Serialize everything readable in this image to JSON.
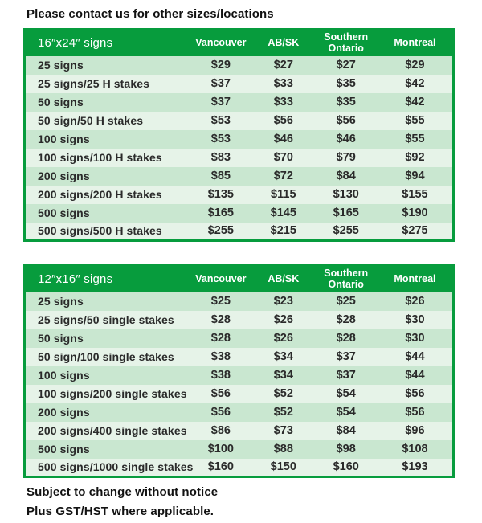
{
  "page": {
    "title": "Please contact us for other sizes/locations",
    "notes": [
      "Subject to change without notice",
      "Plus GST/HST where applicable."
    ]
  },
  "colors": {
    "brand_green": "#079C3D",
    "row_shaded": "#C9E7D0",
    "row_light": "#E6F3E8",
    "header_text": "#FFFFFF",
    "body_text": "#2A2A2A"
  },
  "columns": [
    "Vancouver",
    "AB/SK",
    "Southern Ontario",
    "Montreal"
  ],
  "tables": [
    {
      "size_label": "16″x24″ signs",
      "rows": [
        {
          "item": "25 signs",
          "prices": [
            "$29",
            "$27",
            "$27",
            "$29"
          ]
        },
        {
          "item": "25 signs/25 H stakes",
          "prices": [
            "$37",
            "$33",
            "$35",
            "$42"
          ]
        },
        {
          "item": "50 signs",
          "prices": [
            "$37",
            "$33",
            "$35",
            "$42"
          ]
        },
        {
          "item": "50 sign/50 H stakes",
          "prices": [
            "$53",
            "$56",
            "$56",
            "$55"
          ]
        },
        {
          "item": "100 signs",
          "prices": [
            "$53",
            "$46",
            "$46",
            "$55"
          ]
        },
        {
          "item": "100 signs/100 H stakes",
          "prices": [
            "$83",
            "$70",
            "$79",
            "$92"
          ]
        },
        {
          "item": "200 signs",
          "prices": [
            "$85",
            "$72",
            "$84",
            "$94"
          ]
        },
        {
          "item": "200 signs/200 H stakes",
          "prices": [
            "$135",
            "$115",
            "$130",
            "$155"
          ]
        },
        {
          "item": "500 signs",
          "prices": [
            "$165",
            "$145",
            "$165",
            "$190"
          ]
        },
        {
          "item": "500 signs/500 H stakes",
          "prices": [
            "$255",
            "$215",
            "$255",
            "$275"
          ]
        }
      ]
    },
    {
      "size_label": "12″x16″ signs",
      "rows": [
        {
          "item": "25 signs",
          "prices": [
            "$25",
            "$23",
            "$25",
            "$26"
          ]
        },
        {
          "item": "25 signs/50 single stakes",
          "prices": [
            "$28",
            "$26",
            "$28",
            "$30"
          ]
        },
        {
          "item": "50 signs",
          "prices": [
            "$28",
            "$26",
            "$28",
            "$30"
          ]
        },
        {
          "item": "50 sign/100 single stakes",
          "prices": [
            "$38",
            "$34",
            "$37",
            "$44"
          ]
        },
        {
          "item": "100 signs",
          "prices": [
            "$38",
            "$34",
            "$37",
            "$44"
          ]
        },
        {
          "item": "100 signs/200 single stakes",
          "prices": [
            "$56",
            "$52",
            "$54",
            "$56"
          ]
        },
        {
          "item": "200 signs",
          "prices": [
            "$56",
            "$52",
            "$54",
            "$56"
          ]
        },
        {
          "item": "200 signs/400 single stakes",
          "prices": [
            "$86",
            "$73",
            "$84",
            "$96"
          ]
        },
        {
          "item": "500 signs",
          "prices": [
            "$100",
            "$88",
            "$98",
            "$108"
          ]
        },
        {
          "item": "500 signs/1000 single stakes",
          "prices": [
            "$160",
            "$150",
            "$160",
            "$193"
          ]
        }
      ]
    }
  ]
}
